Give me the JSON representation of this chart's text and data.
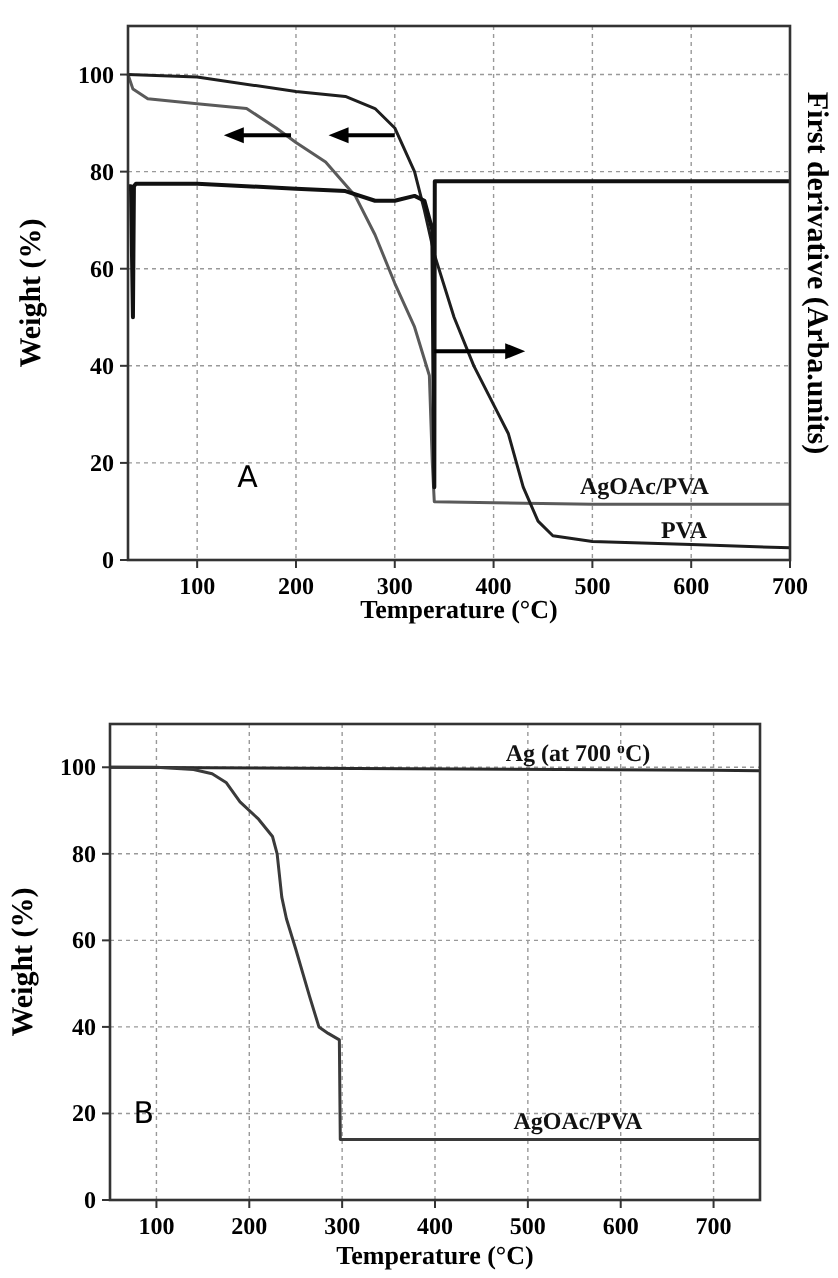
{
  "chart_data": [
    {
      "type": "line",
      "xlabel": "Temperature (°C)",
      "ylabel": "Weight (%)",
      "y2label": "First derivative (Arba.units)",
      "xlim": [
        30,
        700
      ],
      "ylim": [
        0,
        110
      ],
      "xticks": [
        100,
        200,
        300,
        400,
        500,
        600,
        700
      ],
      "yticks": [
        0,
        20,
        40,
        60,
        80,
        100
      ],
      "grid": true,
      "line_style": "solid",
      "marker": "none",
      "annotations": [
        "A"
      ],
      "series": [
        {
          "name": "AgOAc/PVA",
          "color": "#5a5a5a",
          "x": [
            30,
            35,
            50,
            100,
            150,
            180,
            200,
            230,
            260,
            280,
            300,
            320,
            335,
            338,
            340,
            400,
            500,
            700
          ],
          "values": [
            100,
            97,
            95,
            94,
            93,
            89,
            86,
            82,
            75,
            67,
            57,
            48,
            38,
            20,
            12,
            11.8,
            11.5,
            11.5
          ]
        },
        {
          "name": "PVA",
          "color": "#1e1e1e",
          "x": [
            30,
            100,
            200,
            250,
            280,
            300,
            320,
            330,
            340,
            360,
            380,
            400,
            415,
            430,
            445,
            460,
            500,
            600,
            700
          ],
          "values": [
            100,
            99.5,
            96.5,
            95.5,
            93,
            89,
            80,
            72,
            63,
            50,
            40,
            32,
            26,
            15,
            8,
            5,
            3.8,
            3.2,
            2.5
          ]
        },
        {
          "color": "#111111",
          "x": [
            30,
            33,
            35,
            36,
            38,
            100,
            200,
            250,
            280,
            300,
            320,
            330,
            338,
            340,
            340.5,
            342,
            700
          ],
          "values": [
            77,
            77,
            50,
            77,
            77.5,
            77.5,
            76.5,
            76,
            74,
            74,
            75,
            74,
            68,
            15,
            78,
            78,
            78
          ]
        }
      ]
    },
    {
      "type": "line",
      "xlabel": "Temperature (°C)",
      "ylabel": "Weight (%)",
      "xlim": [
        50,
        750
      ],
      "ylim": [
        0,
        110
      ],
      "xticks": [
        100,
        200,
        300,
        400,
        500,
        600,
        700
      ],
      "yticks": [
        0,
        20,
        40,
        60,
        80,
        100
      ],
      "grid": true,
      "line_style": "solid",
      "marker": "none",
      "annotations": [
        "B"
      ],
      "series": [
        {
          "name": "Ag (at 700 $^{o}$C)",
          "color": "#2a2a2a",
          "x": [
            50,
            700,
            750
          ],
          "values": [
            100,
            99.3,
            99.2
          ]
        },
        {
          "name": "AgOAc/PVA",
          "color": "#3a3a3a",
          "x": [
            50,
            100,
            140,
            160,
            175,
            190,
            210,
            225,
            230,
            235,
            240,
            250,
            265,
            275,
            285,
            297,
            298,
            400,
            750
          ],
          "values": [
            100,
            100,
            99.5,
            98.5,
            96.5,
            92,
            88,
            84,
            80,
            70,
            65,
            58,
            47,
            40,
            38.5,
            37,
            14,
            14,
            14
          ]
        }
      ]
    }
  ]
}
